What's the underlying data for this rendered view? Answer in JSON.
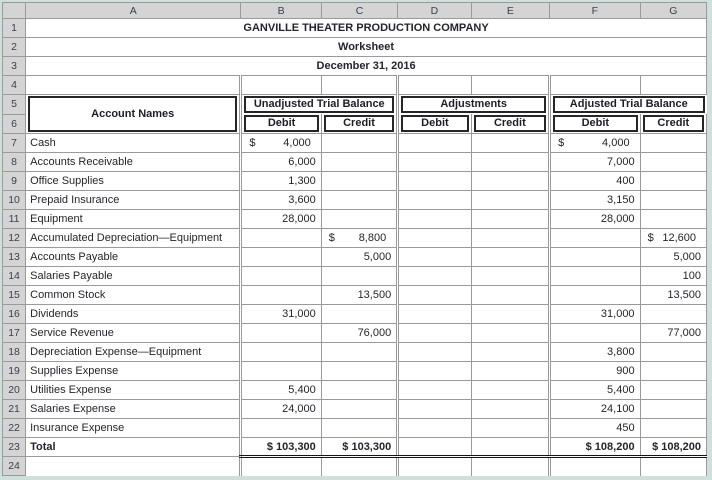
{
  "spreadsheet": {
    "column_headers": [
      "A",
      "B",
      "C",
      "D",
      "E",
      "F",
      "G"
    ],
    "row_headers": [
      "1",
      "2",
      "3",
      "4",
      "5",
      "6",
      "7",
      "8",
      "9",
      "10",
      "11",
      "12",
      "13",
      "14",
      "15",
      "16",
      "17",
      "18",
      "19",
      "20",
      "21",
      "22",
      "23",
      "24"
    ],
    "titles": [
      "GANVILLE THEATER PRODUCTION COMPANY",
      "Worksheet",
      "December 31, 2016"
    ],
    "table": {
      "account_names_header": "Account Names",
      "groups": [
        {
          "label": "Unadjusted Trial Balance"
        },
        {
          "label": "Adjustments"
        },
        {
          "label": "Adjusted Trial Balance"
        }
      ],
      "sub_headers": [
        "Debit",
        "Credit",
        "Debit",
        "Credit",
        "Debit",
        "Credit"
      ],
      "rows": [
        {
          "row": 7,
          "name": "Cash",
          "cells": [
            {
              "dollar": "$",
              "value": "4,000"
            },
            null,
            null,
            null,
            {
              "dollar": "$",
              "value": "4,000"
            },
            null
          ]
        },
        {
          "row": 8,
          "name": "Accounts Receivable",
          "cells": [
            {
              "value": "6,000"
            },
            null,
            null,
            null,
            {
              "value": "7,000"
            },
            null
          ]
        },
        {
          "row": 9,
          "name": "Office Supplies",
          "cells": [
            {
              "value": "1,300"
            },
            null,
            null,
            null,
            {
              "value": "400"
            },
            null
          ]
        },
        {
          "row": 10,
          "name": "Prepaid Insurance",
          "cells": [
            {
              "value": "3,600"
            },
            null,
            null,
            null,
            {
              "value": "3,150"
            },
            null
          ]
        },
        {
          "row": 11,
          "name": "Equipment",
          "cells": [
            {
              "value": "28,000"
            },
            null,
            null,
            null,
            {
              "value": "28,000"
            },
            null
          ]
        },
        {
          "row": 12,
          "name": "Accumulated Depreciation—Equipment",
          "cells": [
            null,
            {
              "dollar": "$",
              "value": "8,800"
            },
            null,
            null,
            null,
            {
              "dollar": "$",
              "value": "12,600"
            }
          ]
        },
        {
          "row": 13,
          "name": "Accounts Payable",
          "cells": [
            null,
            {
              "value": "5,000"
            },
            null,
            null,
            null,
            {
              "value": "5,000"
            }
          ]
        },
        {
          "row": 14,
          "name": "Salaries Payable",
          "cells": [
            null,
            null,
            null,
            null,
            null,
            {
              "value": "100"
            }
          ]
        },
        {
          "row": 15,
          "name": "Common Stock",
          "cells": [
            null,
            {
              "value": "13,500"
            },
            null,
            null,
            null,
            {
              "value": "13,500"
            }
          ]
        },
        {
          "row": 16,
          "name": "Dividends",
          "cells": [
            {
              "value": "31,000"
            },
            null,
            null,
            null,
            {
              "value": "31,000"
            },
            null
          ]
        },
        {
          "row": 17,
          "name": "Service Revenue",
          "cells": [
            null,
            {
              "value": "76,000"
            },
            null,
            null,
            null,
            {
              "value": "77,000"
            }
          ]
        },
        {
          "row": 18,
          "name": "Depreciation Expense—Equipment",
          "cells": [
            null,
            null,
            null,
            null,
            {
              "value": "3,800"
            },
            null
          ]
        },
        {
          "row": 19,
          "name": "Supplies Expense",
          "cells": [
            null,
            null,
            null,
            null,
            {
              "value": "900"
            },
            null
          ]
        },
        {
          "row": 20,
          "name": "Utilities Expense",
          "cells": [
            {
              "value": "5,400"
            },
            null,
            null,
            null,
            {
              "value": "5,400"
            },
            null
          ]
        },
        {
          "row": 21,
          "name": "Salaries Expense",
          "cells": [
            {
              "value": "24,000"
            },
            null,
            null,
            null,
            {
              "value": "24,100"
            },
            null
          ]
        },
        {
          "row": 22,
          "name": "Insurance Expense",
          "cells": [
            null,
            null,
            null,
            null,
            {
              "value": "450"
            },
            null
          ]
        },
        {
          "row": 23,
          "name": "Total",
          "total": true,
          "cells": [
            {
              "value": "$ 103,300"
            },
            {
              "value": "$ 103,300"
            },
            null,
            null,
            {
              "value": "$ 108,200"
            },
            {
              "value": "$ 108,200"
            }
          ]
        }
      ]
    },
    "colors": {
      "frame": "#cde1dc",
      "header_fill": "#d4d4d4",
      "gridline": "#9a9a9a",
      "box_border": "#262626",
      "text": "#24242e"
    }
  }
}
